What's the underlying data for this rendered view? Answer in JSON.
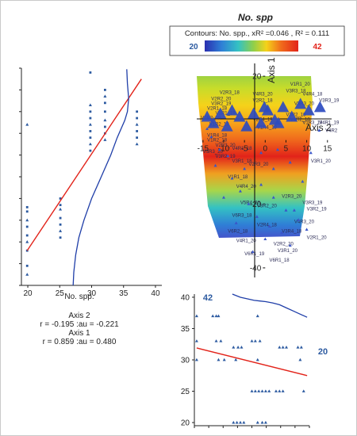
{
  "chart_data": [
    {
      "panel": "left-scatter",
      "type": "scatter",
      "xlabel": "No. spp.",
      "ylabel": "",
      "x_ticks": [
        "20",
        "25",
        "30",
        "35",
        "40"
      ],
      "xlim": [
        19,
        41
      ],
      "ylim": [
        0,
        1
      ],
      "points": [
        {
          "x": 19.9,
          "y": 0.74
        },
        {
          "x": 19.9,
          "y": 0.36
        },
        {
          "x": 19.9,
          "y": 0.34
        },
        {
          "x": 19.9,
          "y": 0.3
        },
        {
          "x": 19.9,
          "y": 0.27
        },
        {
          "x": 19.9,
          "y": 0.23
        },
        {
          "x": 19.9,
          "y": 0.2
        },
        {
          "x": 19.9,
          "y": 0.16
        },
        {
          "x": 19.9,
          "y": 0.09
        },
        {
          "x": 19.9,
          "y": 0.05
        },
        {
          "x": 25.1,
          "y": 0.4
        },
        {
          "x": 25.1,
          "y": 0.37
        },
        {
          "x": 25.1,
          "y": 0.35
        },
        {
          "x": 25.1,
          "y": 0.31
        },
        {
          "x": 25.1,
          "y": 0.28
        },
        {
          "x": 25.1,
          "y": 0.25
        },
        {
          "x": 25.1,
          "y": 0.22
        },
        {
          "x": 29.8,
          "y": 0.98
        },
        {
          "x": 29.8,
          "y": 0.83
        },
        {
          "x": 29.8,
          "y": 0.8
        },
        {
          "x": 29.8,
          "y": 0.77
        },
        {
          "x": 29.8,
          "y": 0.74
        },
        {
          "x": 29.8,
          "y": 0.71
        },
        {
          "x": 29.8,
          "y": 0.68
        },
        {
          "x": 29.8,
          "y": 0.65
        },
        {
          "x": 29.8,
          "y": 0.62
        },
        {
          "x": 32.1,
          "y": 0.9
        },
        {
          "x": 32.1,
          "y": 0.87
        },
        {
          "x": 32.1,
          "y": 0.84
        },
        {
          "x": 32.1,
          "y": 0.8
        },
        {
          "x": 32.1,
          "y": 0.76
        },
        {
          "x": 32.1,
          "y": 0.73
        },
        {
          "x": 32.1,
          "y": 0.7
        },
        {
          "x": 32.1,
          "y": 0.67
        },
        {
          "x": 37.1,
          "y": 0.8
        },
        {
          "x": 37.1,
          "y": 0.77
        },
        {
          "x": 37.1,
          "y": 0.74
        },
        {
          "x": 37.1,
          "y": 0.71
        },
        {
          "x": 37.1,
          "y": 0.68
        },
        {
          "x": 37.1,
          "y": 0.65
        }
      ],
      "trend_line": {
        "x": [
          19.9,
          37.8
        ],
        "y": [
          0.16,
          0.95
        ],
        "color": "#e2231a"
      },
      "density_curve": {
        "x": [
          35.5,
          35.6,
          35.8,
          35.6,
          35.2,
          34.6,
          34.0,
          33.0,
          31.5,
          30.0,
          28.8,
          28.0,
          27.5,
          27.2,
          27.1
        ],
        "y": [
          0.995,
          0.93,
          0.86,
          0.8,
          0.76,
          0.72,
          0.68,
          0.6,
          0.5,
          0.4,
          0.3,
          0.22,
          0.14,
          0.06,
          0.0
        ],
        "color": "#1f3ea8"
      },
      "stats": {
        "axis2_title": "Axis 2",
        "axis2_line": "r = -0.195 :au = -0.221",
        "axis1_title": "Axis 1",
        "axis1_line": "r = 0.859 :au = 0.480"
      }
    },
    {
      "panel": "ordination-contour",
      "type": "scatter",
      "title": "No. spp",
      "legend": {
        "text": "Contours: No. spp., xR² =0.046 , R² = 0.111",
        "min_label": "20",
        "max_label": "42",
        "min_color": "#2c5aa0",
        "max_color": "#e2231a"
      },
      "xaxis_label": "Axis 2",
      "yaxis_label": "Axis 1",
      "x_ticks": [
        "-15",
        "-10",
        "-5",
        "0",
        "5",
        "10",
        "15"
      ],
      "y_ticks": [
        "20",
        "-20",
        "-40"
      ],
      "xlim": [
        -16.5,
        16
      ],
      "ylim": [
        -43,
        24
      ],
      "contour_colors_top_to_bottom": [
        "#8fcf4a",
        "#c8dc2a",
        "#f5d21a",
        "#f6a51b",
        "#f06a1c",
        "#e2231a",
        "#f0a020",
        "#a7d64a",
        "#34c2c3",
        "#2f7fd6",
        "#4a48c8"
      ],
      "large_markers": [
        {
          "x": -14.0,
          "y": 7
        },
        {
          "x": -12.5,
          "y": 5
        },
        {
          "x": -10.8,
          "y": 8
        },
        {
          "x": -9.2,
          "y": 4
        },
        {
          "x": -8.0,
          "y": 9
        },
        {
          "x": -6.2,
          "y": 7
        },
        {
          "x": -4.5,
          "y": 4
        },
        {
          "x": -2.8,
          "y": 8
        },
        {
          "x": -1.0,
          "y": 5
        },
        {
          "x": 0.6,
          "y": 9
        },
        {
          "x": 2.3,
          "y": 6
        },
        {
          "x": 4.3,
          "y": 10
        },
        {
          "x": 6.4,
          "y": 7
        },
        {
          "x": 8.5,
          "y": 11
        },
        {
          "x": 10.5,
          "y": 9
        },
        {
          "x": 13.2,
          "y": 10
        },
        {
          "x": 3.2,
          "y": 5
        },
        {
          "x": -0.2,
          "y": 10
        }
      ],
      "small_markers": [
        {
          "x": -14,
          "y": 3.5
        },
        {
          "x": -13,
          "y": 1
        },
        {
          "x": -11,
          "y": -3
        },
        {
          "x": -9,
          "y": -5
        },
        {
          "x": -12,
          "y": -8
        },
        {
          "x": -8,
          "y": -12
        },
        {
          "x": -6,
          "y": -16
        },
        {
          "x": -4,
          "y": -20
        },
        {
          "x": -2,
          "y": -24
        },
        {
          "x": 1,
          "y": -27
        },
        {
          "x": 4,
          "y": -29
        },
        {
          "x": 7,
          "y": -22
        },
        {
          "x": 9,
          "y": -13
        },
        {
          "x": 6,
          "y": -7
        },
        {
          "x": 3,
          "y": -3
        },
        {
          "x": 11,
          "y": -4
        },
        {
          "x": 13,
          "y": 3
        },
        {
          "x": -5,
          "y": -9
        },
        {
          "x": -1,
          "y": -14
        },
        {
          "x": 2,
          "y": -18
        },
        {
          "x": 5,
          "y": -22
        },
        {
          "x": 8,
          "y": -25
        },
        {
          "x": -7,
          "y": -26
        },
        {
          "x": 0,
          "y": -31
        },
        {
          "x": -3,
          "y": -35
        },
        {
          "x": 6,
          "y": -33
        },
        {
          "x": 10,
          "y": -28
        },
        {
          "x": -10,
          "y": -18
        },
        {
          "x": -1,
          "y": -4
        },
        {
          "x": 2,
          "y": -9
        }
      ],
      "site_labels": [
        {
          "text": "V2R3_18",
          "x": -11,
          "y": 14.5
        },
        {
          "text": "V4R3_20",
          "x": -3,
          "y": 14
        },
        {
          "text": "V3R3_18",
          "x": 5,
          "y": 15
        },
        {
          "text": "V1R1_20",
          "x": 6,
          "y": 17
        },
        {
          "text": "V4R4_18",
          "x": 9,
          "y": 14
        },
        {
          "text": "V2R2_18",
          "x": -3,
          "y": 12
        },
        {
          "text": "V2R2_20",
          "x": -13,
          "y": 12.5
        },
        {
          "text": "V3R2_19",
          "x": -13,
          "y": 11
        },
        {
          "text": "V2R1_18",
          "x": -14,
          "y": 9.5
        },
        {
          "text": "V1R1_19",
          "x": -12,
          "y": 8
        },
        {
          "text": "V2R2_19",
          "x": -15.5,
          "y": 6.5
        },
        {
          "text": "V1R2_19",
          "x": -13.5,
          "y": 4.5
        },
        {
          "text": "V2R4_19",
          "x": -3,
          "y": 6
        },
        {
          "text": "V1R4_19",
          "x": -2,
          "y": 3.5
        },
        {
          "text": "V3R2_19",
          "x": 5,
          "y": 7.5
        },
        {
          "text": "V4R2_18",
          "x": 6,
          "y": 6
        },
        {
          "text": "V3R3_19",
          "x": 13,
          "y": 12
        },
        {
          "text": "V3R3_20",
          "x": 7,
          "y": 11
        },
        {
          "text": "V1R3_19",
          "x": 9,
          "y": 5
        },
        {
          "text": "V4R1_19",
          "x": 13,
          "y": 5
        },
        {
          "text": "V4R2",
          "x": 14.5,
          "y": 2.5
        },
        {
          "text": "V1R4_18",
          "x": -14,
          "y": 1
        },
        {
          "text": "V1R2_18",
          "x": -14,
          "y": -0.5
        },
        {
          "text": "V2R3_20",
          "x": -12,
          "y": -2
        },
        {
          "text": "V3R3_20",
          "x": -15,
          "y": -4
        },
        {
          "text": "V4R1_18",
          "x": -8,
          "y": -3
        },
        {
          "text": "V3R2_19",
          "x": -12,
          "y": -5.5
        },
        {
          "text": "V3R1_18",
          "x": -8,
          "y": -7
        },
        {
          "text": "V2R3_20",
          "x": -4,
          "y": -8
        },
        {
          "text": "V3R1_20",
          "x": 11,
          "y": -7
        },
        {
          "text": "V1R1_18",
          "x": -9,
          "y": -12
        },
        {
          "text": "V2R3_20",
          "x": 4,
          "y": -18
        },
        {
          "text": "V3R3_19",
          "x": 9,
          "y": -20
        },
        {
          "text": "V3R2_19",
          "x": 10,
          "y": -22
        },
        {
          "text": "V4R4_20",
          "x": -7,
          "y": -15
        },
        {
          "text": "V5R4_20",
          "x": -6,
          "y": -20
        },
        {
          "text": "V6R3_18",
          "x": -8,
          "y": -24
        },
        {
          "text": "V6R2_18",
          "x": -9,
          "y": -29
        },
        {
          "text": "V4R3_20",
          "x": 7,
          "y": -26
        },
        {
          "text": "V3R4_18",
          "x": 4,
          "y": -29
        },
        {
          "text": "V2R4_18",
          "x": -2,
          "y": -27
        },
        {
          "text": "V4R1_20",
          "x": -7,
          "y": -32
        },
        {
          "text": "V2R2_20",
          "x": 2,
          "y": -33
        },
        {
          "text": "V6R1_19",
          "x": -5,
          "y": -36
        },
        {
          "text": "V6R1_18",
          "x": 1,
          "y": -38
        },
        {
          "text": "V3R1_20",
          "x": 3,
          "y": -35
        },
        {
          "text": "V2R1_20",
          "x": 10,
          "y": -31
        },
        {
          "text": "V3R2_20",
          "x": -2,
          "y": -21
        }
      ]
    },
    {
      "panel": "bottom-scatter",
      "type": "scatter",
      "y_ticks": [
        "20",
        "25",
        "30",
        "35",
        "40"
      ],
      "ylim": [
        19.5,
        40.5
      ],
      "xlim": [
        0,
        1
      ],
      "corner_label_left": "42",
      "corner_label_right": "20",
      "points": [
        {
          "x": 0.02,
          "y": 37
        },
        {
          "x": 0.02,
          "y": 33
        },
        {
          "x": 0.02,
          "y": 30
        },
        {
          "x": 0.16,
          "y": 37
        },
        {
          "x": 0.19,
          "y": 37
        },
        {
          "x": 0.21,
          "y": 37
        },
        {
          "x": 0.19,
          "y": 33
        },
        {
          "x": 0.23,
          "y": 33
        },
        {
          "x": 0.21,
          "y": 30
        },
        {
          "x": 0.26,
          "y": 30
        },
        {
          "x": 0.34,
          "y": 32
        },
        {
          "x": 0.38,
          "y": 32
        },
        {
          "x": 0.41,
          "y": 32
        },
        {
          "x": 0.36,
          "y": 30
        },
        {
          "x": 0.34,
          "y": 20
        },
        {
          "x": 0.37,
          "y": 20
        },
        {
          "x": 0.4,
          "y": 20
        },
        {
          "x": 0.43,
          "y": 20
        },
        {
          "x": 0.55,
          "y": 37
        },
        {
          "x": 0.5,
          "y": 33
        },
        {
          "x": 0.53,
          "y": 33
        },
        {
          "x": 0.57,
          "y": 33
        },
        {
          "x": 0.55,
          "y": 30
        },
        {
          "x": 0.5,
          "y": 25
        },
        {
          "x": 0.53,
          "y": 25
        },
        {
          "x": 0.56,
          "y": 25
        },
        {
          "x": 0.59,
          "y": 25
        },
        {
          "x": 0.62,
          "y": 25
        },
        {
          "x": 0.65,
          "y": 25
        },
        {
          "x": 0.55,
          "y": 20
        },
        {
          "x": 0.59,
          "y": 20
        },
        {
          "x": 0.62,
          "y": 20
        },
        {
          "x": 0.71,
          "y": 25
        },
        {
          "x": 0.74,
          "y": 25
        },
        {
          "x": 0.77,
          "y": 25
        },
        {
          "x": 0.74,
          "y": 32
        },
        {
          "x": 0.77,
          "y": 32
        },
        {
          "x": 0.8,
          "y": 32
        },
        {
          "x": 0.9,
          "y": 32
        },
        {
          "x": 0.93,
          "y": 32
        },
        {
          "x": 0.92,
          "y": 30
        },
        {
          "x": 0.95,
          "y": 25
        }
      ],
      "trend_line": {
        "x": [
          0.02,
          0.98
        ],
        "y": [
          31.9,
          27.5
        ],
        "color": "#e2231a"
      },
      "density_curve": {
        "x": [
          0.33,
          0.4,
          0.47,
          0.52,
          0.57,
          0.62,
          0.68,
          0.74,
          0.8,
          0.86,
          0.92,
          0.98
        ],
        "y": [
          40.5,
          40.0,
          39.7,
          39.5,
          39.4,
          39.3,
          39.1,
          38.8,
          38.3,
          37.8,
          37.3,
          36.8
        ],
        "color": "#1f3ea8"
      }
    }
  ]
}
